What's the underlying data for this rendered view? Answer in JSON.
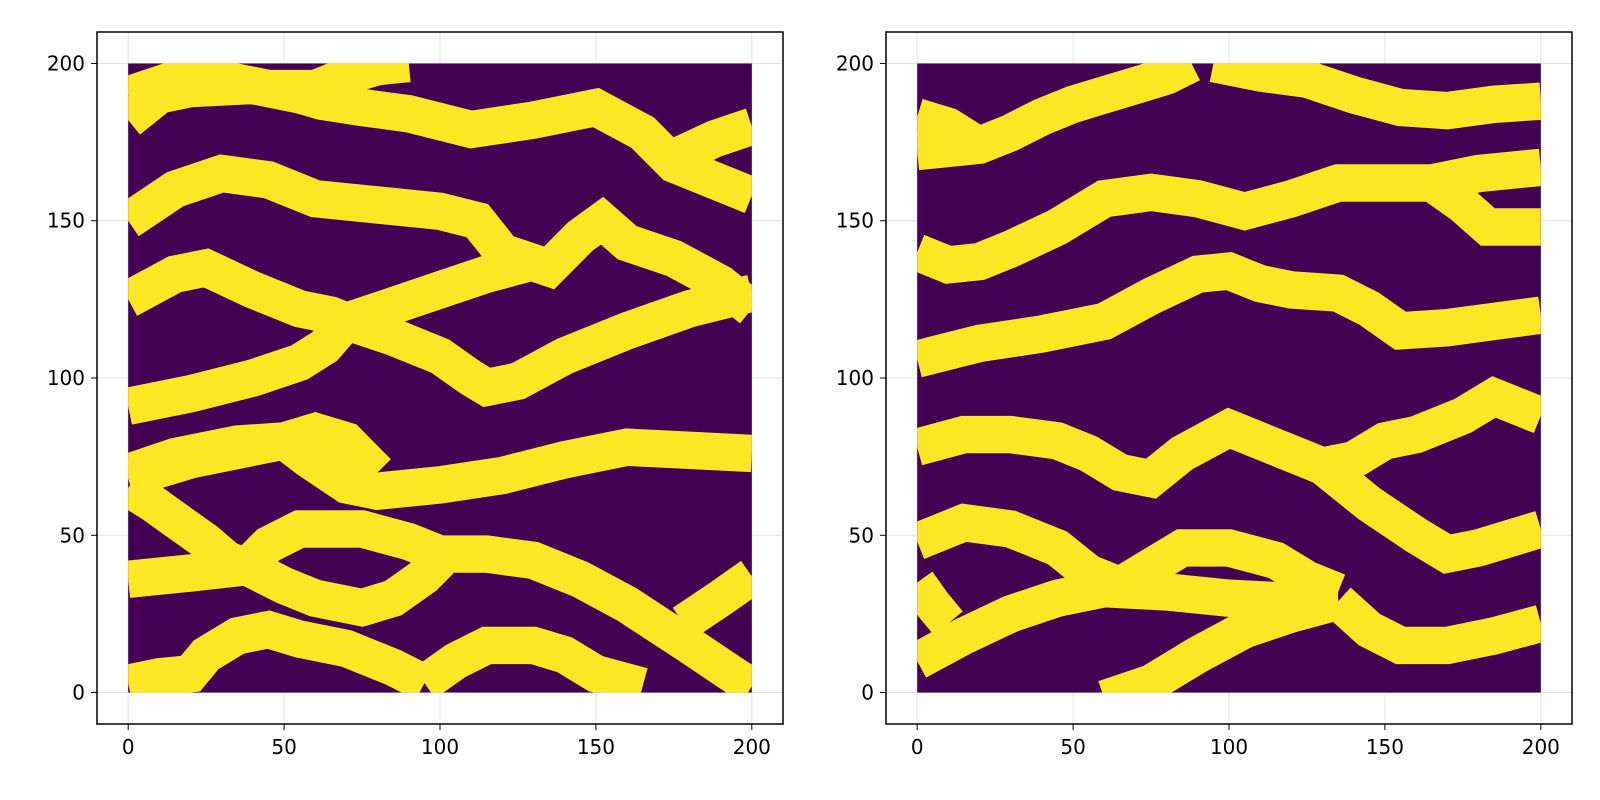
{
  "colors": {
    "background_cell": "#440154",
    "channel_cell": "#fde725",
    "grid": "#e3e3e3",
    "axis": "#000000"
  },
  "chart_data": [
    {
      "type": "heatmap",
      "title": "",
      "xlabel": "",
      "ylabel": "",
      "xlim": [
        -10,
        210
      ],
      "ylim": [
        -10,
        210
      ],
      "grid_extent": {
        "x": [
          0,
          200
        ],
        "y": [
          0,
          200
        ]
      },
      "grid": true,
      "legend": "none",
      "colormap": [
        "#440154",
        "#fde725"
      ],
      "value_range": [
        0,
        1
      ],
      "xticks": [
        0,
        50,
        100,
        150,
        200
      ],
      "yticks": [
        0,
        50,
        100,
        150,
        200
      ],
      "xtick_labels": [
        "0",
        "50",
        "100",
        "150",
        "200"
      ],
      "ytick_labels": [
        "0",
        "50",
        "100",
        "150",
        "200"
      ],
      "channel_width": 12,
      "channels": [
        [
          [
            0,
            190
          ],
          [
            15,
            195
          ],
          [
            30,
            195
          ],
          [
            45,
            192
          ],
          [
            60,
            192
          ],
          [
            70,
            196
          ],
          [
            80,
            199
          ],
          [
            90,
            200
          ]
        ],
        [
          [
            0,
            182
          ],
          [
            10,
            190
          ],
          [
            20,
            192
          ],
          [
            40,
            193
          ],
          [
            55,
            190
          ],
          [
            62,
            188
          ],
          [
            75,
            186
          ],
          [
            90,
            184
          ],
          [
            110,
            179
          ],
          [
            130,
            182
          ],
          [
            150,
            186
          ],
          [
            165,
            178
          ],
          [
            175,
            168
          ],
          [
            190,
            162
          ],
          [
            200,
            158
          ]
        ],
        [
          [
            175,
            170
          ],
          [
            188,
            176
          ],
          [
            200,
            180
          ]
        ],
        [
          [
            0,
            150
          ],
          [
            15,
            160
          ],
          [
            30,
            165
          ],
          [
            45,
            163
          ],
          [
            60,
            157
          ],
          [
            80,
            155
          ],
          [
            100,
            153
          ],
          [
            112,
            150
          ],
          [
            120,
            140
          ],
          [
            135,
            135
          ],
          [
            145,
            145
          ],
          [
            152,
            150
          ],
          [
            160,
            143
          ],
          [
            175,
            138
          ],
          [
            190,
            130
          ],
          [
            200,
            122
          ]
        ],
        [
          [
            0,
            125
          ],
          [
            15,
            133
          ],
          [
            25,
            135
          ],
          [
            40,
            128
          ],
          [
            55,
            122
          ],
          [
            65,
            120
          ],
          [
            70,
            118
          ],
          [
            85,
            113
          ],
          [
            100,
            107
          ],
          [
            110,
            100
          ],
          [
            115,
            97
          ],
          [
            125,
            99
          ],
          [
            140,
            107
          ],
          [
            160,
            115
          ],
          [
            180,
            122
          ],
          [
            200,
            127
          ]
        ],
        [
          [
            0,
            91
          ],
          [
            20,
            95
          ],
          [
            40,
            100
          ],
          [
            55,
            105
          ],
          [
            63,
            110
          ],
          [
            70,
            118
          ],
          [
            85,
            123
          ],
          [
            100,
            128
          ],
          [
            115,
            133
          ],
          [
            130,
            137
          ]
        ],
        [
          [
            0,
            70
          ],
          [
            15,
            75
          ],
          [
            35,
            79
          ],
          [
            50,
            80
          ],
          [
            60,
            83
          ],
          [
            70,
            80
          ],
          [
            80,
            70
          ]
        ],
        [
          [
            0,
            68
          ],
          [
            20,
            74
          ],
          [
            40,
            78
          ],
          [
            50,
            80
          ],
          [
            58,
            74
          ],
          [
            70,
            66
          ],
          [
            80,
            64
          ],
          [
            100,
            66
          ],
          [
            120,
            69
          ],
          [
            140,
            74
          ],
          [
            160,
            78
          ],
          [
            180,
            77
          ],
          [
            200,
            76
          ]
        ],
        [
          [
            0,
            65
          ],
          [
            8,
            60
          ],
          [
            15,
            55
          ],
          [
            25,
            48
          ],
          [
            32,
            42
          ],
          [
            38,
            40
          ]
        ],
        [
          [
            0,
            36
          ],
          [
            20,
            38
          ],
          [
            38,
            40
          ],
          [
            45,
            47
          ],
          [
            55,
            52
          ],
          [
            75,
            52
          ],
          [
            90,
            48
          ],
          [
            100,
            44
          ],
          [
            115,
            44
          ],
          [
            130,
            42
          ],
          [
            145,
            36
          ],
          [
            160,
            28
          ],
          [
            180,
            15
          ],
          [
            195,
            5
          ],
          [
            200,
            2
          ]
        ],
        [
          [
            38,
            40
          ],
          [
            50,
            34
          ],
          [
            60,
            30
          ],
          [
            75,
            27
          ],
          [
            85,
            30
          ],
          [
            95,
            37
          ],
          [
            100,
            42
          ]
        ],
        [
          [
            178,
            22
          ],
          [
            190,
            30
          ],
          [
            200,
            37
          ]
        ],
        [
          [
            0,
            3
          ],
          [
            10,
            5
          ],
          [
            20,
            6
          ],
          [
            25,
            12
          ],
          [
            35,
            18
          ],
          [
            45,
            20
          ],
          [
            55,
            17
          ],
          [
            70,
            14
          ],
          [
            85,
            8
          ],
          [
            95,
            3
          ]
        ],
        [
          [
            95,
            3
          ],
          [
            105,
            10
          ],
          [
            115,
            15
          ],
          [
            130,
            15
          ],
          [
            140,
            12
          ],
          [
            150,
            6
          ],
          [
            165,
            2
          ]
        ]
      ]
    },
    {
      "type": "heatmap",
      "title": "",
      "xlabel": "",
      "ylabel": "",
      "xlim": [
        -10,
        210
      ],
      "ylim": [
        -10,
        210
      ],
      "grid_extent": {
        "x": [
          0,
          200
        ],
        "y": [
          0,
          200
        ]
      },
      "grid": true,
      "legend": "none",
      "colormap": [
        "#440154",
        "#fde725"
      ],
      "value_range": [
        0,
        1
      ],
      "xticks": [
        0,
        50,
        100,
        150,
        200
      ],
      "yticks": [
        0,
        50,
        100,
        150,
        200
      ],
      "xtick_labels": [
        "0",
        "50",
        "100",
        "150",
        "200"
      ],
      "ytick_labels": [
        "0",
        "50",
        "100",
        "150",
        "200"
      ],
      "channel_width": 12,
      "channels": [
        [
          [
            0,
            172
          ],
          [
            10,
            173
          ],
          [
            20,
            174
          ],
          [
            30,
            178
          ],
          [
            40,
            183
          ],
          [
            50,
            187
          ],
          [
            60,
            190
          ],
          [
            70,
            193
          ],
          [
            80,
            196
          ],
          [
            88,
            200
          ]
        ],
        [
          [
            0,
            183
          ],
          [
            10,
            180
          ],
          [
            18,
            175
          ]
        ],
        [
          [
            95,
            200
          ],
          [
            110,
            197
          ],
          [
            125,
            195
          ],
          [
            140,
            190
          ],
          [
            155,
            186
          ],
          [
            170,
            185
          ],
          [
            185,
            187
          ],
          [
            200,
            188
          ]
        ],
        [
          [
            0,
            140
          ],
          [
            10,
            136
          ],
          [
            20,
            137
          ],
          [
            30,
            141
          ],
          [
            45,
            148
          ],
          [
            60,
            157
          ],
          [
            75,
            159
          ],
          [
            90,
            157
          ],
          [
            105,
            153
          ],
          [
            120,
            157
          ],
          [
            135,
            162
          ],
          [
            150,
            162
          ],
          [
            165,
            162
          ],
          [
            180,
            165
          ],
          [
            200,
            167
          ]
        ],
        [
          [
            165,
            162
          ],
          [
            175,
            155
          ],
          [
            183,
            148
          ],
          [
            192,
            148
          ],
          [
            200,
            148
          ]
        ],
        [
          [
            0,
            106
          ],
          [
            20,
            111
          ],
          [
            40,
            114
          ],
          [
            60,
            118
          ],
          [
            75,
            126
          ],
          [
            90,
            133
          ],
          [
            100,
            134
          ],
          [
            110,
            130
          ],
          [
            120,
            128
          ],
          [
            135,
            127
          ],
          [
            145,
            122
          ],
          [
            155,
            115
          ],
          [
            170,
            116
          ],
          [
            185,
            118
          ],
          [
            200,
            120
          ]
        ],
        [
          [
            0,
            78
          ],
          [
            15,
            82
          ],
          [
            30,
            82
          ],
          [
            45,
            80
          ],
          [
            55,
            76
          ],
          [
            65,
            70
          ],
          [
            75,
            68
          ],
          [
            85,
            76
          ],
          [
            100,
            84
          ],
          [
            110,
            80
          ],
          [
            120,
            76
          ],
          [
            130,
            72
          ],
          [
            140,
            74
          ],
          [
            150,
            80
          ],
          [
            160,
            82
          ],
          [
            175,
            88
          ],
          [
            185,
            94
          ],
          [
            200,
            88
          ]
        ],
        [
          [
            130,
            72
          ],
          [
            145,
            60
          ],
          [
            160,
            50
          ],
          [
            170,
            44
          ],
          [
            180,
            46
          ],
          [
            200,
            52
          ]
        ],
        [
          [
            0,
            48
          ],
          [
            15,
            54
          ],
          [
            30,
            52
          ],
          [
            45,
            46
          ],
          [
            55,
            38
          ],
          [
            65,
            34
          ]
        ],
        [
          [
            65,
            34
          ],
          [
            75,
            40
          ],
          [
            85,
            46
          ],
          [
            100,
            46
          ],
          [
            115,
            42
          ],
          [
            125,
            36
          ],
          [
            135,
            32
          ]
        ],
        [
          [
            0,
            10
          ],
          [
            15,
            18
          ],
          [
            30,
            25
          ],
          [
            45,
            30
          ],
          [
            60,
            33
          ],
          [
            80,
            32
          ],
          [
            100,
            30
          ],
          [
            120,
            29
          ],
          [
            135,
            29
          ]
        ],
        [
          [
            0,
            35
          ],
          [
            5,
            28
          ],
          [
            10,
            22
          ]
        ],
        [
          [
            135,
            29
          ],
          [
            145,
            20
          ],
          [
            155,
            15
          ],
          [
            170,
            15
          ],
          [
            185,
            18
          ],
          [
            200,
            22
          ]
        ],
        [
          [
            60,
            -2
          ],
          [
            75,
            3
          ],
          [
            90,
            12
          ],
          [
            105,
            20
          ],
          [
            120,
            25
          ],
          [
            135,
            29
          ]
        ]
      ]
    }
  ]
}
